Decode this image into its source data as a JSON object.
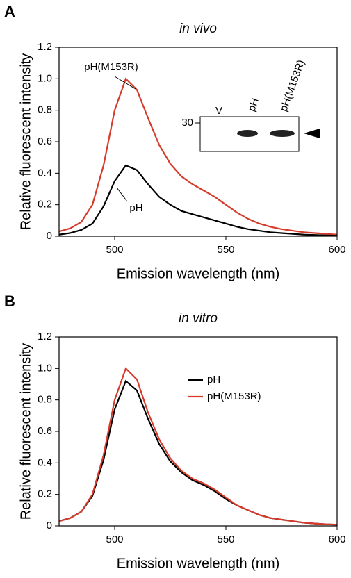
{
  "chart_data": [
    {
      "type": "line",
      "panel": "A",
      "title": "in vivo",
      "xlabel": "Emission wavelength (nm)",
      "ylabel": "Relative fluorescent intensity",
      "x": [
        475,
        480,
        485,
        490,
        495,
        500,
        505,
        510,
        515,
        520,
        525,
        530,
        535,
        540,
        545,
        550,
        555,
        560,
        565,
        570,
        575,
        580,
        585,
        590,
        595,
        600
      ],
      "series": [
        {
          "name": "pH(M153R)",
          "color": "#d63a2a",
          "values": [
            0.03,
            0.05,
            0.09,
            0.2,
            0.45,
            0.8,
            1.0,
            0.93,
            0.75,
            0.58,
            0.46,
            0.38,
            0.33,
            0.29,
            0.25,
            0.2,
            0.15,
            0.11,
            0.08,
            0.06,
            0.045,
            0.035,
            0.025,
            0.02,
            0.015,
            0.01
          ]
        },
        {
          "name": "pH",
          "color": "#000000",
          "values": [
            0.01,
            0.02,
            0.04,
            0.08,
            0.19,
            0.35,
            0.45,
            0.42,
            0.33,
            0.25,
            0.2,
            0.16,
            0.14,
            0.12,
            0.1,
            0.08,
            0.06,
            0.045,
            0.035,
            0.025,
            0.02,
            0.015,
            0.01,
            0.008,
            0.005,
            0.003
          ]
        }
      ],
      "xlim": [
        475,
        600
      ],
      "xticks": [
        500,
        550,
        600
      ],
      "ylim": [
        0,
        1.2
      ],
      "yticks": [
        0,
        0.2,
        0.4,
        0.6,
        {
          "value": 1,
          "label": "1.0"
        },
        0.8,
        1.2
      ],
      "legend": "annotations",
      "inset": {
        "lane_labels": [
          "V",
          "pH",
          "pH(M153R)"
        ],
        "marker": 30
      }
    },
    {
      "type": "line",
      "panel": "B",
      "title": "in vitro",
      "xlabel": "Emission wavelength (nm)",
      "ylabel": "Relative fluorescent intensity",
      "x": [
        475,
        480,
        485,
        490,
        495,
        500,
        505,
        510,
        515,
        520,
        525,
        530,
        535,
        540,
        545,
        550,
        555,
        560,
        565,
        570,
        575,
        580,
        585,
        590,
        595,
        600
      ],
      "series": [
        {
          "name": "pH",
          "color": "#000000",
          "values": [
            0.03,
            0.05,
            0.09,
            0.19,
            0.42,
            0.74,
            0.92,
            0.86,
            0.68,
            0.52,
            0.41,
            0.34,
            0.29,
            0.26,
            0.22,
            0.17,
            0.13,
            0.1,
            0.07,
            0.05,
            0.04,
            0.03,
            0.02,
            0.015,
            0.01,
            0.008
          ]
        },
        {
          "name": "pH(M153R)",
          "color": "#d63a2a",
          "values": [
            0.03,
            0.05,
            0.09,
            0.2,
            0.45,
            0.8,
            1.0,
            0.93,
            0.72,
            0.55,
            0.43,
            0.35,
            0.3,
            0.27,
            0.23,
            0.18,
            0.13,
            0.1,
            0.07,
            0.05,
            0.04,
            0.03,
            0.02,
            0.015,
            0.01,
            0.008
          ]
        }
      ],
      "xlim": [
        475,
        600
      ],
      "xticks": [
        500,
        550,
        600
      ],
      "ylim": [
        0,
        1.2
      ],
      "yticks": [
        0,
        0.2,
        0.4,
        0.6,
        0.8,
        {
          "value": 1,
          "label": "1.0"
        },
        1.2
      ],
      "legend": "upper right"
    }
  ]
}
